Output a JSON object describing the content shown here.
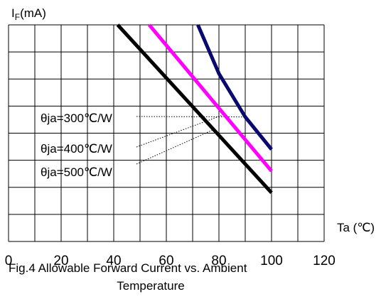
{
  "chart_data": {
    "type": "line",
    "ylabel": "IF(mA)",
    "ylabel_main": "I",
    "ylabel_sub": "F",
    "ylabel_unit": "(mA)",
    "xlabel": "Ta (℃)",
    "xticks": [
      "0",
      "20",
      "40",
      "60",
      "80",
      "100",
      "120"
    ],
    "xlim": [
      0,
      120
    ],
    "ylim": [
      0,
      8
    ],
    "grid": true,
    "caption_line1": "Fig.4 Allowable Forward Current vs. Ambient",
    "caption_line2": "Temperature",
    "colors": {
      "s300": "#0a0a6e",
      "s400": "#ff00ff",
      "s500": "#000000",
      "grid": "#000000"
    },
    "series": [
      {
        "name": "θja=300℃/W",
        "color": "#0a0a6e",
        "x": [
          72,
          80,
          90,
          100
        ],
        "y": [
          8.0,
          6.2,
          4.6,
          3.4
        ]
      },
      {
        "name": "θja=400℃/W",
        "color": "#ff00ff",
        "x": [
          53.5,
          100
        ],
        "y": [
          8.0,
          2.6
        ]
      },
      {
        "name": "θja=500℃/W",
        "color": "#000000",
        "x": [
          41.5,
          100
        ],
        "y": [
          8.0,
          1.8
        ]
      }
    ]
  }
}
